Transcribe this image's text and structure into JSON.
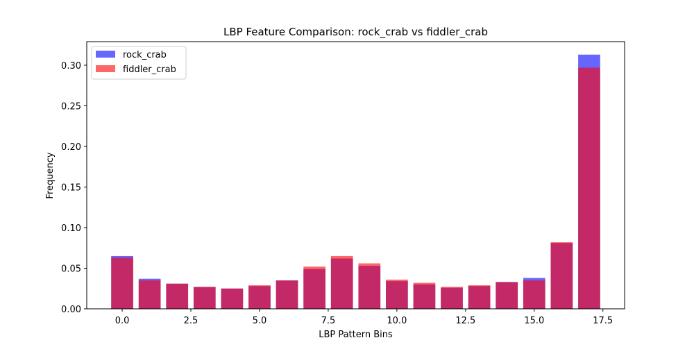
{
  "chart_data": {
    "type": "bar",
    "title": "LBP Feature Comparison: rock_crab vs fiddler_crab",
    "xlabel": "LBP Pattern Bins",
    "ylabel": "Frequency",
    "x": [
      0,
      1,
      2,
      3,
      4,
      5,
      6,
      7,
      8,
      9,
      10,
      11,
      12,
      13,
      14,
      15,
      16,
      17
    ],
    "series": [
      {
        "name": "rock_crab",
        "color": "#0000ff",
        "opacity": 0.6,
        "values": [
          0.065,
          0.037,
          0.031,
          0.027,
          0.025,
          0.028,
          0.035,
          0.049,
          0.062,
          0.053,
          0.034,
          0.03,
          0.026,
          0.028,
          0.033,
          0.038,
          0.081,
          0.313
        ]
      },
      {
        "name": "fiddler_crab",
        "color": "#ff0000",
        "opacity": 0.6,
        "values": [
          0.063,
          0.035,
          0.031,
          0.027,
          0.025,
          0.029,
          0.035,
          0.052,
          0.065,
          0.056,
          0.036,
          0.032,
          0.027,
          0.029,
          0.033,
          0.035,
          0.082,
          0.297
        ]
      }
    ],
    "xlim": [
      -1.29,
      18.29
    ],
    "ylim": [
      0,
      0.329
    ],
    "xticks": [
      0.0,
      2.5,
      5.0,
      7.5,
      10.0,
      12.5,
      15.0,
      17.5
    ],
    "xtick_labels": [
      "0.0",
      "2.5",
      "5.0",
      "7.5",
      "10.0",
      "12.5",
      "15.0",
      "17.5"
    ],
    "yticks": [
      0.0,
      0.05,
      0.1,
      0.15,
      0.2,
      0.25,
      0.3
    ],
    "ytick_labels": [
      "0.00",
      "0.05",
      "0.10",
      "0.15",
      "0.20",
      "0.25",
      "0.30"
    ],
    "grid": false,
    "legend": "top-left"
  }
}
